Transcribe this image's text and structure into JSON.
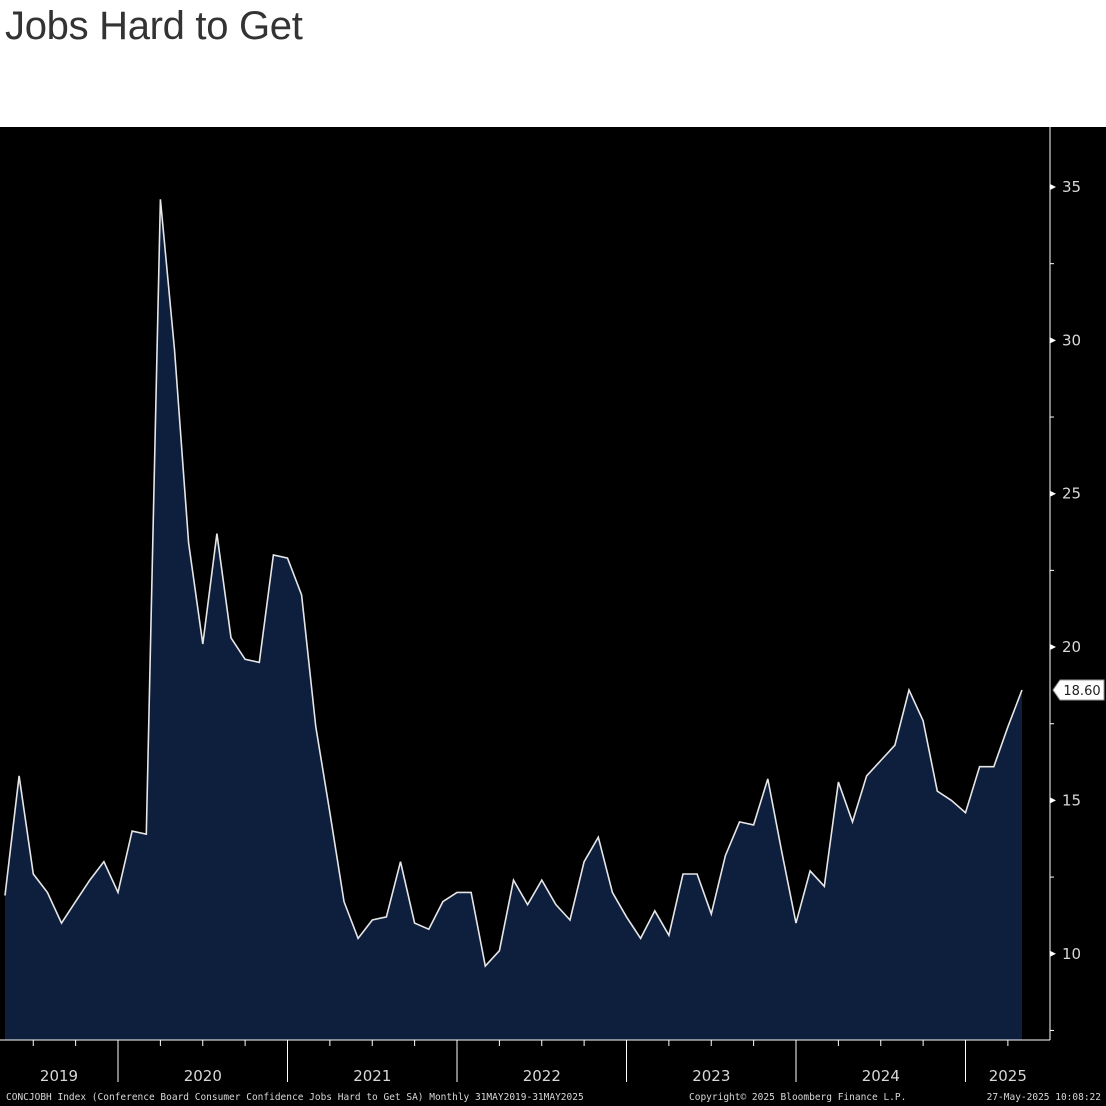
{
  "title": "Jobs Hard to Get",
  "footer": {
    "description": "CONCJOBH Index (Conference Board Consumer Confidence Jobs Hard to Get SA)  Monthly 31MAY2019-31MAY2025",
    "copyright": "Copyright© 2025 Bloomberg Finance L.P.",
    "timestamp": "27-May-2025 10:08:22"
  },
  "colors": {
    "background": "#000000",
    "area_fill": "#0e1f3d",
    "line": "#e6e6e6",
    "axis": "#ffffff"
  },
  "chart_data": {
    "type": "area",
    "title": "Jobs Hard to Get",
    "xlabel": "",
    "ylabel": "",
    "ylim": [
      7.5,
      36.5
    ],
    "yticks": [
      10,
      15,
      20,
      25,
      30,
      35
    ],
    "ytick_labels": [
      "10",
      "15",
      "20",
      "25",
      "30",
      "35"
    ],
    "x_year_labels": [
      "2019",
      "2020",
      "2021",
      "2022",
      "2023",
      "2024",
      "2025"
    ],
    "x_start": "2019-05",
    "x_end": "2025-05",
    "frequency": "monthly",
    "grid": false,
    "last_value_label": "18.60",
    "series": [
      {
        "values": [
          11.9,
          15.8,
          12.6,
          12.0,
          11.0,
          11.7,
          12.4,
          13.0,
          12.0,
          14.0,
          13.9,
          34.6,
          29.7,
          23.4,
          20.1,
          23.7,
          20.3,
          19.6,
          19.5,
          23.0,
          22.9,
          21.7,
          17.4,
          14.6,
          11.7,
          10.5,
          11.1,
          11.2,
          13.0,
          11.0,
          10.8,
          11.7,
          12.0,
          12.0,
          9.6,
          10.1,
          12.4,
          11.6,
          12.4,
          11.6,
          11.1,
          13.0,
          13.8,
          12.0,
          11.2,
          10.5,
          11.4,
          10.6,
          12.6,
          12.6,
          11.3,
          13.2,
          14.3,
          14.2,
          15.7,
          13.3,
          11.0,
          12.7,
          12.2,
          15.6,
          14.3,
          15.8,
          16.3,
          16.8,
          18.6,
          17.6,
          15.3,
          15.0,
          14.6,
          16.1,
          16.1,
          17.4,
          18.6
        ]
      }
    ]
  }
}
